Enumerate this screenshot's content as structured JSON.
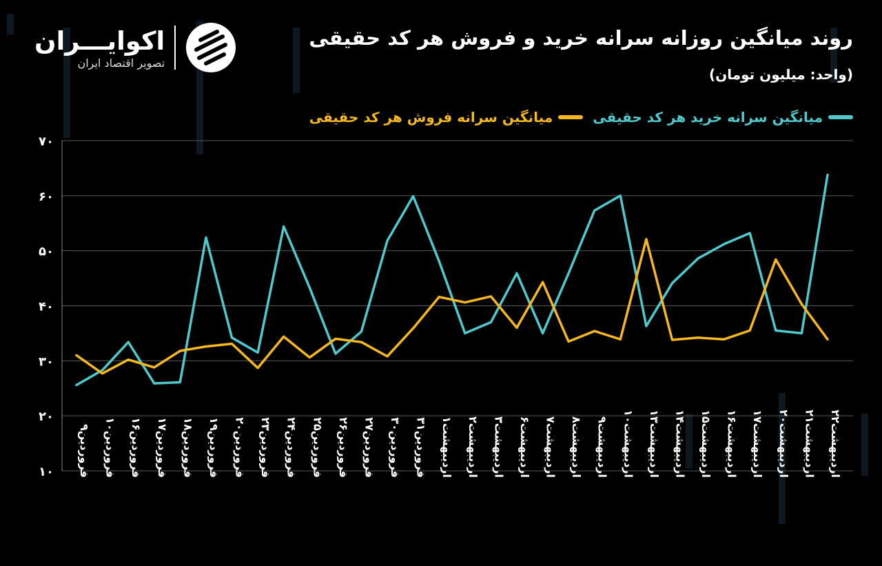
{
  "header": {
    "title": "روند میانگین روزانه سرانه خرید و فروش هر کد حقیقی",
    "unit": "(واحد: میلیون تومان)"
  },
  "logo": {
    "name": "اکوایـــران",
    "tagline": "تصویر اقتصاد ایران",
    "icon": "ecoiran-stripes-logo"
  },
  "colors": {
    "buy": "#4fc9cc",
    "sell": "#f5b820",
    "grid": "#5a5a5a",
    "background": "#000000"
  },
  "chart_data": {
    "type": "line",
    "title": "روند میانگین روزانه سرانه خرید و فروش هر کد حقیقی",
    "ylabel": "(واحد: میلیون تومان)",
    "ylim": [
      10,
      70
    ],
    "yticks": [
      "۱۰",
      "۲۰",
      "۳۰",
      "۴۰",
      "۵۰",
      "۶۰",
      "۷۰"
    ],
    "ytick_values": [
      10,
      20,
      30,
      40,
      50,
      60,
      70
    ],
    "grid": true,
    "legend_position": "top-right",
    "categories": [
      "فروردین۹",
      "فروردین۱۰",
      "فروردین۱۶",
      "فروردین۱۷",
      "فروردین۱۸",
      "فروردین۱۹",
      "فروردین۲۰",
      "فروردین۲۳",
      "فروردین۲۴",
      "فروردین۲۵",
      "فروردین۲۶",
      "فروردین۲۷",
      "فروردین۳۰",
      "فروردین۳۱",
      "اردیبهشت۱",
      "اردیبهشت۲",
      "اردیبهشت۳",
      "اردیبهشت۶",
      "اردیبهشت۷",
      "اردیبهشت۸",
      "اردیبهشت۹",
      "اردیبهشت۱۰",
      "اردیبهشت۱۳",
      "اردیبهشت۱۴",
      "اردیبهشت۱۵",
      "اردیبهشت۱۶",
      "اردیبهشت۱۷",
      "اردیبهشت۲۰",
      "اردیبهشت۲۱",
      "اردیبهشت۲۲"
    ],
    "series": [
      {
        "name": "میانگین سرانه خرید هر کد حقیقی",
        "color": "#4fc9cc",
        "values": [
          25.6,
          28.3,
          33.4,
          25.9,
          26.1,
          52.4,
          34.2,
          31.5,
          54.4,
          43.3,
          31.3,
          35.3,
          51.8,
          59.9,
          48.1,
          35.0,
          37.0,
          45.9,
          35.0,
          45.9,
          57.3,
          60.0,
          36.3,
          44.1,
          48.6,
          51.2,
          53.2,
          35.5,
          35.0,
          63.8
        ]
      },
      {
        "name": "میانگین سرانه فروش هر کد حقیقی",
        "color": "#f5b820",
        "values": [
          31.0,
          27.7,
          30.2,
          28.8,
          31.8,
          32.6,
          33.1,
          28.7,
          34.4,
          30.6,
          34.0,
          33.4,
          30.8,
          35.9,
          41.6,
          40.6,
          41.7,
          36.0,
          44.3,
          33.5,
          35.4,
          33.9,
          52.1,
          33.8,
          34.2,
          33.9,
          35.5,
          48.4,
          40.3,
          33.9
        ]
      }
    ]
  }
}
